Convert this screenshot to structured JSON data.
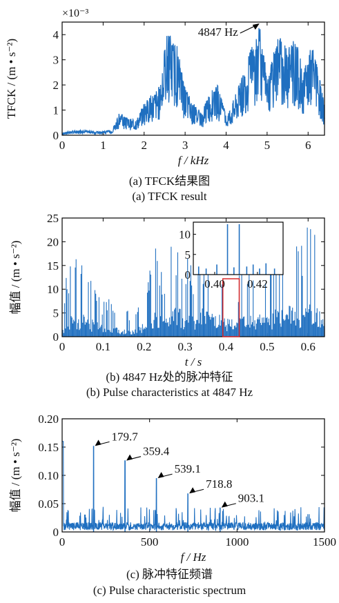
{
  "colors": {
    "signal": "#1f6fc0",
    "axis": "#000000",
    "highlight": "#d62728"
  },
  "chart_data": [
    {
      "type": "line",
      "id": "a",
      "xlabel": "f / kHz",
      "ylabel": "TFCK / (m • s⁻²)",
      "exponent": "×10⁻³",
      "xlim": [
        0,
        6.4
      ],
      "ylim": [
        0,
        4.5
      ],
      "xticks": [
        0,
        1,
        2,
        3,
        4,
        5,
        6
      ],
      "yticks": [
        0,
        1,
        2,
        3,
        4
      ],
      "grid": false,
      "annotations": [
        {
          "text": "4847 Hz",
          "x": 4.847,
          "y": 4.5
        }
      ],
      "envelope": [
        [
          0.0,
          0.1
        ],
        [
          0.3,
          0.2
        ],
        [
          0.6,
          0.2
        ],
        [
          0.9,
          0.15
        ],
        [
          1.2,
          0.2
        ],
        [
          1.4,
          0.9
        ],
        [
          1.6,
          0.7
        ],
        [
          1.8,
          0.6
        ],
        [
          2.0,
          1.3
        ],
        [
          2.2,
          1.7
        ],
        [
          2.4,
          2.0
        ],
        [
          2.55,
          4.2
        ],
        [
          2.8,
          3.6
        ],
        [
          3.0,
          1.9
        ],
        [
          3.2,
          1.3
        ],
        [
          3.4,
          0.9
        ],
        [
          3.6,
          1.7
        ],
        [
          3.8,
          2.0
        ],
        [
          4.0,
          0.8
        ],
        [
          4.2,
          1.5
        ],
        [
          4.4,
          2.4
        ],
        [
          4.6,
          3.5
        ],
        [
          4.75,
          4.1
        ],
        [
          4.85,
          4.5
        ],
        [
          5.0,
          2.1
        ],
        [
          5.2,
          3.6
        ],
        [
          5.3,
          4.2
        ],
        [
          5.5,
          3.3
        ],
        [
          5.6,
          4.1
        ],
        [
          5.75,
          3.5
        ],
        [
          5.9,
          2.6
        ],
        [
          6.1,
          3.7
        ],
        [
          6.3,
          2.1
        ],
        [
          6.4,
          1.2
        ]
      ],
      "caption_cn": "(a)  TFCK结果图",
      "caption_en": "(a)  TFCK result"
    },
    {
      "type": "line",
      "id": "b",
      "xlabel": "t / s",
      "ylabel": "幅值 / (m • s⁻²)",
      "xlim": [
        0,
        0.64
      ],
      "ylim": [
        0,
        25
      ],
      "xticks": [
        0,
        0.1,
        0.2,
        0.3,
        0.4,
        0.5,
        0.6
      ],
      "xticklabels": [
        "0",
        "0.1",
        "0.2",
        "0.3",
        "0.4",
        "0.5",
        "0.6"
      ],
      "yticks": [
        0,
        5,
        10,
        15,
        20,
        25
      ],
      "grid": false,
      "highlight_range": [
        0.392,
        0.432
      ],
      "envelope": [
        [
          0.0,
          3
        ],
        [
          0.01,
          14
        ],
        [
          0.035,
          17.5
        ],
        [
          0.06,
          16
        ],
        [
          0.08,
          11
        ],
        [
          0.1,
          8
        ],
        [
          0.12,
          10
        ],
        [
          0.14,
          6
        ],
        [
          0.18,
          5
        ],
        [
          0.21,
          15
        ],
        [
          0.23,
          19
        ],
        [
          0.25,
          13
        ],
        [
          0.27,
          21
        ],
        [
          0.3,
          19
        ],
        [
          0.32,
          14
        ],
        [
          0.34,
          20
        ],
        [
          0.37,
          18
        ],
        [
          0.41,
          12
        ],
        [
          0.43,
          13
        ],
        [
          0.45,
          18
        ],
        [
          0.47,
          17
        ],
        [
          0.5,
          16
        ],
        [
          0.52,
          21
        ],
        [
          0.55,
          22
        ],
        [
          0.58,
          20
        ],
        [
          0.6,
          24
        ],
        [
          0.62,
          22
        ],
        [
          0.64,
          14
        ]
      ],
      "inset": {
        "xlim": [
          0.39,
          0.432
        ],
        "ylim": [
          0,
          13
        ],
        "xticks": [
          0.4,
          0.42
        ],
        "xticklabels": [
          "0.40",
          "0.42"
        ],
        "yticks": [
          0,
          5,
          10
        ],
        "spikes": [
          [
            0.3925,
            2
          ],
          [
            0.396,
            1.5
          ],
          [
            0.401,
            2.5
          ],
          [
            0.406,
            12.5
          ],
          [
            0.409,
            1.8
          ],
          [
            0.4115,
            12.5
          ],
          [
            0.415,
            2
          ],
          [
            0.418,
            2.5
          ],
          [
            0.421,
            1.5
          ],
          [
            0.424,
            2.8
          ],
          [
            0.428,
            1.5
          ]
        ]
      },
      "caption_cn": "(b)  4847 Hz处的脉冲特征",
      "caption_en": "(b)  Pulse characteristics at 4847 Hz"
    },
    {
      "type": "line",
      "id": "c",
      "xlabel": "f / Hz",
      "ylabel": "幅值 / (m • s⁻²)",
      "xlim": [
        0,
        1500
      ],
      "ylim": [
        0,
        0.2
      ],
      "xticks": [
        0,
        500,
        1000,
        1500
      ],
      "yticks": [
        0,
        0.05,
        0.1,
        0.15,
        0.2
      ],
      "yticklabels": [
        "0",
        "0.05",
        "0.10",
        "0.15",
        "0.20"
      ],
      "grid": false,
      "peaks": [
        {
          "x": 179.7,
          "y": 0.152,
          "label": "179.7"
        },
        {
          "x": 359.4,
          "y": 0.126,
          "label": "359.4"
        },
        {
          "x": 539.1,
          "y": 0.095,
          "label": "539.1"
        },
        {
          "x": 718.8,
          "y": 0.068,
          "label": "718.8"
        },
        {
          "x": 903.1,
          "y": 0.043,
          "label": "903.1"
        }
      ],
      "caption_cn": "(c)  脉冲特征频谱",
      "caption_en": "(c)  Pulse characteristic spectrum"
    }
  ]
}
